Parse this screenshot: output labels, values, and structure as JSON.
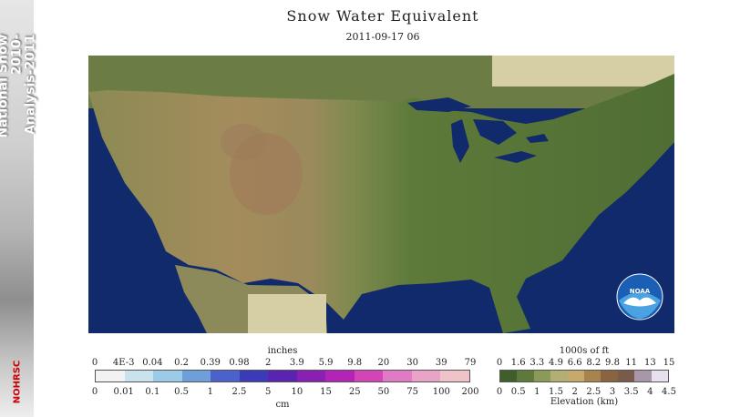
{
  "sidebar": {
    "text_line1": "National Snow 2010-",
    "text_line2": "Analysis-2011",
    "brand": "NOHRSC"
  },
  "title": "Snow Water Equivalent",
  "datetime": "2011-09-17 06",
  "swe_legend": {
    "top_unit": "inches",
    "bottom_unit": "cm",
    "inches_ticks": [
      "0",
      "4E-3",
      "0.04",
      "0.2",
      "0.39",
      "0.98",
      "2",
      "3.9",
      "5.9",
      "9.8",
      "20",
      "30",
      "39",
      "79"
    ],
    "cm_ticks": [
      "0",
      "0.01",
      "0.1",
      "0.5",
      "1",
      "2.5",
      "5",
      "10",
      "15",
      "25",
      "50",
      "75",
      "100",
      "200"
    ],
    "colors": [
      "#f2f2f2",
      "#c9e3ee",
      "#9bcbe6",
      "#6f9fdb",
      "#4b62cc",
      "#3b3ab8",
      "#5a23b0",
      "#8a1fb4",
      "#b223b6",
      "#d244b8",
      "#e07ac4",
      "#e8a3c7",
      "#efc4c8"
    ]
  },
  "elev_legend": {
    "top_unit": "1000s of ft",
    "bottom_unit": "Elevation (km)",
    "ft_ticks": [
      "0",
      "1.6",
      "3.3",
      "4.9",
      "6.6",
      "8.2",
      "9.8",
      "11",
      "13",
      "15"
    ],
    "km_ticks": [
      "0",
      "0.5",
      "1",
      "1.5",
      "2",
      "2.5",
      "3",
      "3.5",
      "4",
      "4.5"
    ],
    "colors": [
      "#3e5e2a",
      "#5e7a3a",
      "#8b9a58",
      "#b3ae74",
      "#c6a96b",
      "#a8834e",
      "#8a6440",
      "#7a5a4a",
      "#a897a8",
      "#e8e0ee"
    ]
  },
  "logo": "NOAA"
}
